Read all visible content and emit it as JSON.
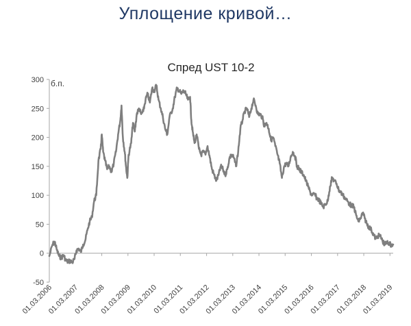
{
  "slide": {
    "title": "Уплощение кривой…"
  },
  "chart_data": {
    "type": "line",
    "title": "Спред UST 10-2",
    "ylabel": "б.п.",
    "xlabel": "",
    "ylim": [
      -50,
      300
    ],
    "yticks": [
      -50,
      0,
      50,
      100,
      150,
      200,
      250,
      300
    ],
    "xlim": [
      "2006-03-01",
      "2019-04-15"
    ],
    "xticks": [
      {
        "date": "2006-03-01",
        "label": "01.03.2006"
      },
      {
        "date": "2007-03-01",
        "label": "01.03.2007"
      },
      {
        "date": "2008-03-01",
        "label": "01.03.2008"
      },
      {
        "date": "2009-03-01",
        "label": "01.03.2009"
      },
      {
        "date": "2010-03-01",
        "label": "01.03.2010"
      },
      {
        "date": "2011-03-01",
        "label": "01.03.2011"
      },
      {
        "date": "2012-03-01",
        "label": "01.03.2012"
      },
      {
        "date": "2013-03-01",
        "label": "01.03.2013"
      },
      {
        "date": "2014-03-01",
        "label": "01.03.2014"
      },
      {
        "date": "2015-03-01",
        "label": "01.03.2015"
      },
      {
        "date": "2016-03-01",
        "label": "01.03.2016"
      },
      {
        "date": "2017-03-01",
        "label": "01.03.2017"
      },
      {
        "date": "2018-03-01",
        "label": "01.03.2018"
      },
      {
        "date": "2019-03-01",
        "label": "01.03.2019"
      }
    ],
    "grid": false,
    "legend": "none",
    "series": [
      {
        "color": "#7f7f7f",
        "points": [
          [
            "2006-03-01",
            -5
          ],
          [
            "2006-04-15",
            15
          ],
          [
            "2006-05-15",
            20
          ],
          [
            "2006-06-15",
            5
          ],
          [
            "2006-07-15",
            -5
          ],
          [
            "2006-08-15",
            -8
          ],
          [
            "2006-09-15",
            -3
          ],
          [
            "2006-10-15",
            -12
          ],
          [
            "2006-11-15",
            -15
          ],
          [
            "2006-12-15",
            -13
          ],
          [
            "2007-01-15",
            -16
          ],
          [
            "2007-02-15",
            -10
          ],
          [
            "2007-03-15",
            5
          ],
          [
            "2007-04-15",
            8
          ],
          [
            "2007-05-15",
            2
          ],
          [
            "2007-06-15",
            15
          ],
          [
            "2007-07-15",
            22
          ],
          [
            "2007-08-15",
            40
          ],
          [
            "2007-09-15",
            55
          ],
          [
            "2007-10-15",
            62
          ],
          [
            "2007-11-15",
            90
          ],
          [
            "2007-12-15",
            100
          ],
          [
            "2008-01-15",
            160
          ],
          [
            "2008-02-15",
            180
          ],
          [
            "2008-03-01",
            205
          ],
          [
            "2008-03-20",
            175
          ],
          [
            "2008-04-15",
            160
          ],
          [
            "2008-05-15",
            145
          ],
          [
            "2008-06-15",
            150
          ],
          [
            "2008-07-15",
            140
          ],
          [
            "2008-08-15",
            155
          ],
          [
            "2008-09-15",
            175
          ],
          [
            "2008-10-15",
            205
          ],
          [
            "2008-11-15",
            230
          ],
          [
            "2008-12-01",
            255
          ],
          [
            "2008-12-20",
            200
          ],
          [
            "2009-01-15",
            175
          ],
          [
            "2009-02-01",
            150
          ],
          [
            "2009-02-20",
            130
          ],
          [
            "2009-03-10",
            170
          ],
          [
            "2009-04-15",
            190
          ],
          [
            "2009-05-10",
            225
          ],
          [
            "2009-06-05",
            210
          ],
          [
            "2009-07-01",
            240
          ],
          [
            "2009-08-01",
            250
          ],
          [
            "2009-09-01",
            240
          ],
          [
            "2009-10-01",
            245
          ],
          [
            "2009-11-01",
            265
          ],
          [
            "2009-12-01",
            275
          ],
          [
            "2010-01-01",
            260
          ],
          [
            "2010-02-01",
            285
          ],
          [
            "2010-03-01",
            280
          ],
          [
            "2010-04-01",
            290
          ],
          [
            "2010-05-01",
            265
          ],
          [
            "2010-06-01",
            250
          ],
          [
            "2010-07-01",
            235
          ],
          [
            "2010-08-01",
            215
          ],
          [
            "2010-09-01",
            205
          ],
          [
            "2010-10-01",
            235
          ],
          [
            "2010-11-15",
            250
          ],
          [
            "2010-12-15",
            270
          ],
          [
            "2011-01-15",
            285
          ],
          [
            "2011-02-15",
            280
          ],
          [
            "2011-03-15",
            275
          ],
          [
            "2011-04-15",
            280
          ],
          [
            "2011-05-15",
            275
          ],
          [
            "2011-06-15",
            265
          ],
          [
            "2011-07-15",
            270
          ],
          [
            "2011-08-01",
            230
          ],
          [
            "2011-08-20",
            210
          ],
          [
            "2011-09-15",
            190
          ],
          [
            "2011-10-15",
            205
          ],
          [
            "2011-11-15",
            180
          ],
          [
            "2011-12-15",
            170
          ],
          [
            "2012-01-15",
            175
          ],
          [
            "2012-02-15",
            170
          ],
          [
            "2012-03-15",
            185
          ],
          [
            "2012-04-15",
            165
          ],
          [
            "2012-05-15",
            145
          ],
          [
            "2012-06-15",
            135
          ],
          [
            "2012-07-15",
            125
          ],
          [
            "2012-08-15",
            135
          ],
          [
            "2012-09-15",
            150
          ],
          [
            "2012-10-15",
            145
          ],
          [
            "2012-11-15",
            135
          ],
          [
            "2012-12-15",
            145
          ],
          [
            "2013-01-15",
            165
          ],
          [
            "2013-02-15",
            170
          ],
          [
            "2013-03-15",
            165
          ],
          [
            "2013-04-15",
            150
          ],
          [
            "2013-05-15",
            175
          ],
          [
            "2013-06-15",
            215
          ],
          [
            "2013-07-15",
            230
          ],
          [
            "2013-08-15",
            245
          ],
          [
            "2013-09-15",
            250
          ],
          [
            "2013-10-15",
            235
          ],
          [
            "2013-11-15",
            250
          ],
          [
            "2013-12-15",
            265
          ],
          [
            "2014-01-15",
            255
          ],
          [
            "2014-02-15",
            240
          ],
          [
            "2014-03-15",
            240
          ],
          [
            "2014-04-15",
            235
          ],
          [
            "2014-05-15",
            220
          ],
          [
            "2014-06-15",
            225
          ],
          [
            "2014-07-15",
            215
          ],
          [
            "2014-08-15",
            195
          ],
          [
            "2014-09-15",
            200
          ],
          [
            "2014-10-15",
            185
          ],
          [
            "2014-11-15",
            170
          ],
          [
            "2014-12-15",
            155
          ],
          [
            "2015-01-15",
            130
          ],
          [
            "2015-02-15",
            150
          ],
          [
            "2015-03-15",
            155
          ],
          [
            "2015-04-15",
            150
          ],
          [
            "2015-05-15",
            165
          ],
          [
            "2015-06-15",
            175
          ],
          [
            "2015-07-15",
            168
          ],
          [
            "2015-08-15",
            150
          ],
          [
            "2015-09-15",
            145
          ],
          [
            "2015-10-15",
            140
          ],
          [
            "2015-11-15",
            135
          ],
          [
            "2015-12-15",
            125
          ],
          [
            "2016-01-15",
            115
          ],
          [
            "2016-02-15",
            105
          ],
          [
            "2016-03-15",
            100
          ],
          [
            "2016-04-15",
            102
          ],
          [
            "2016-05-15",
            95
          ],
          [
            "2016-06-15",
            92
          ],
          [
            "2016-07-15",
            85
          ],
          [
            "2016-08-15",
            80
          ],
          [
            "2016-09-15",
            85
          ],
          [
            "2016-10-15",
            90
          ],
          [
            "2016-11-15",
            115
          ],
          [
            "2016-12-15",
            130
          ],
          [
            "2017-01-15",
            125
          ],
          [
            "2017-02-15",
            120
          ],
          [
            "2017-03-15",
            110
          ],
          [
            "2017-04-15",
            105
          ],
          [
            "2017-05-15",
            100
          ],
          [
            "2017-06-15",
            95
          ],
          [
            "2017-07-15",
            90
          ],
          [
            "2017-08-15",
            85
          ],
          [
            "2017-09-15",
            82
          ],
          [
            "2017-10-15",
            80
          ],
          [
            "2017-11-15",
            65
          ],
          [
            "2017-12-15",
            55
          ],
          [
            "2018-01-15",
            60
          ],
          [
            "2018-02-15",
            70
          ],
          [
            "2018-03-15",
            60
          ],
          [
            "2018-04-15",
            50
          ],
          [
            "2018-05-15",
            45
          ],
          [
            "2018-06-15",
            40
          ],
          [
            "2018-07-15",
            32
          ],
          [
            "2018-08-15",
            25
          ],
          [
            "2018-09-15",
            30
          ],
          [
            "2018-10-15",
            30
          ],
          [
            "2018-11-15",
            22
          ],
          [
            "2018-12-15",
            15
          ],
          [
            "2019-01-15",
            18
          ],
          [
            "2019-02-15",
            18
          ],
          [
            "2019-03-15",
            14
          ],
          [
            "2019-04-15",
            15
          ]
        ]
      }
    ]
  }
}
